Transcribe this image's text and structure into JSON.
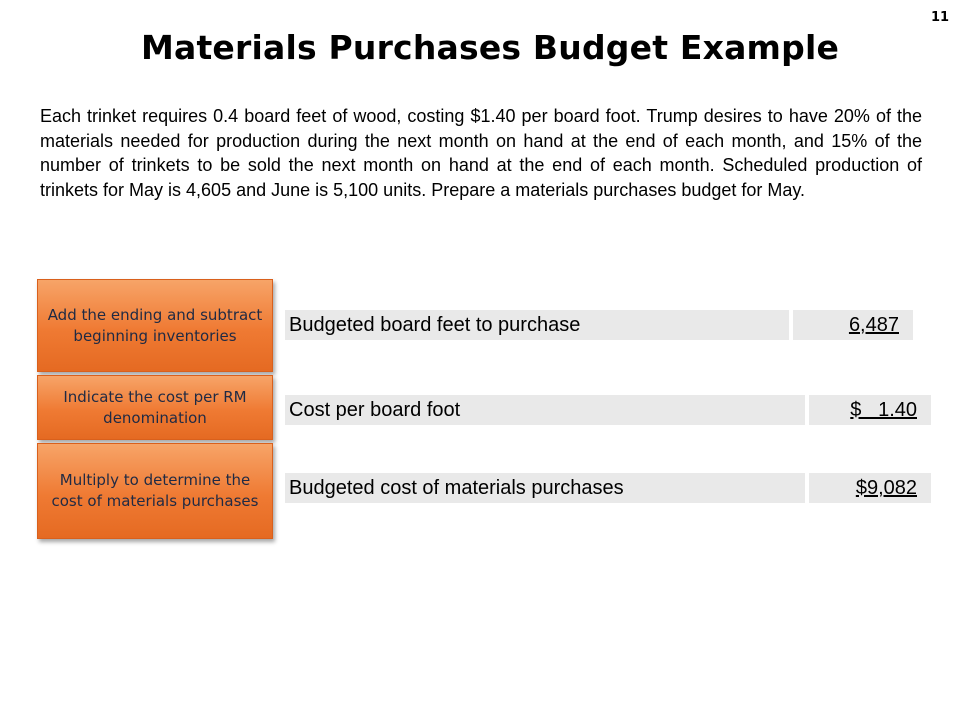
{
  "slide": {
    "number": "11",
    "title": "Materials Purchases Budget Example",
    "paragraph": "Each trinket requires 0.4 board feet of wood, costing $1.40 per board foot. Trump desires to have 20% of the materials needed for production during the next month on hand at the end of each month, and 15% of the number of trinkets to be sold the next month on hand at the end of each month. Scheduled production of trinkets for May is 4,605 and June is 5,100 units. Prepare a materials purchases budget for May."
  },
  "callouts": [
    {
      "text": "Add the ending and subtract beginning inventories"
    },
    {
      "text": "Indicate the cost per RM denomination"
    },
    {
      "text": "Multiply to determine the cost of materials purchases"
    }
  ],
  "rows": [
    {
      "label": "Budgeted board feet to purchase",
      "value": "6,487"
    },
    {
      "label": "Cost per board foot",
      "value": "$   1.40"
    },
    {
      "label": "Budgeted cost of materials purchases",
      "value": "$9,082"
    }
  ],
  "colors": {
    "callout_fill": "#ef7a33",
    "callout_text": "#1f2a44",
    "row_fill": "#e9e9e9"
  }
}
